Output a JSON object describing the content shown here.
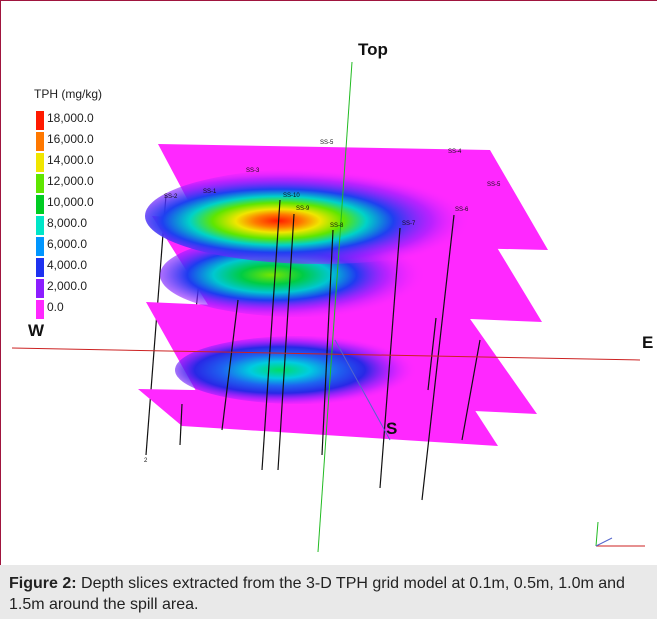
{
  "legend": {
    "title": "TPH (mg/kg)",
    "items": [
      {
        "label": "18,000.0",
        "color": "#ff1a00"
      },
      {
        "label": "16,000.0",
        "color": "#ff7800"
      },
      {
        "label": "14,000.0",
        "color": "#f0e600"
      },
      {
        "label": "12,000.0",
        "color": "#5fe600"
      },
      {
        "label": "10,000.0",
        "color": "#00cc22"
      },
      {
        "label": "8,000.0",
        "color": "#00e6c8"
      },
      {
        "label": "6,000.0",
        "color": "#0096ff"
      },
      {
        "label": "4,000.0",
        "color": "#1e32f0"
      },
      {
        "label": "2,000.0",
        "color": "#8c1eff"
      },
      {
        "label": "0.0",
        "color": "#ff28ff"
      }
    ]
  },
  "axes": {
    "top": "Top",
    "west": "W",
    "east": "E",
    "south": "S"
  },
  "well_labels": [
    "SS-5",
    "SS-3",
    "SS-4",
    "SS-1",
    "SS-10",
    "SS-9",
    "SS-8",
    "SS-2",
    "SS-7",
    "SS-6",
    "SS-5",
    "2"
  ],
  "caption": {
    "bold": "Figure 2:",
    "text": " Depth slices extracted from the 3-D TPH grid model at 0.1m, 0.5m, 1.0m and 1.5m around the spill area."
  }
}
